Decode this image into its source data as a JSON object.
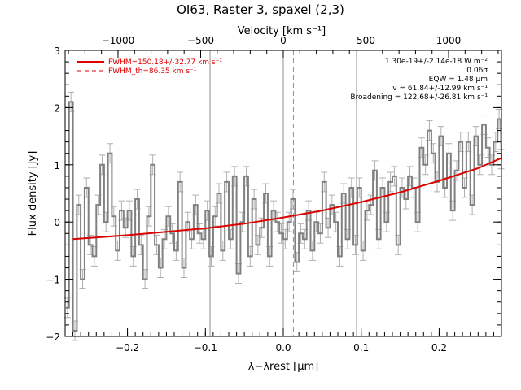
{
  "chart_data": {
    "type": "line",
    "title": "OI63, Raster 3, spaxel (2,3)",
    "xlabel": "λ−λrest [μm]",
    "ylabel": "Flux density [Jy]",
    "x2label": "Velocity [km s⁻¹]",
    "xlim": [
      -0.28,
      0.28
    ],
    "ylim": [
      -2,
      3
    ],
    "xticks": [
      -0.2,
      -0.1,
      0.0,
      0.1,
      0.2
    ],
    "yticks": [
      -2,
      -1,
      0,
      1,
      2,
      3
    ],
    "vticks": [
      -1000,
      -500,
      0,
      500,
      1000
    ],
    "vlim": [
      -1320,
      1320
    ],
    "annotations": [
      "1.30e-19+/-2.14e-18 W m⁻²",
      "0.06σ",
      "EQW = 1.48 μm",
      "v = 61.84+/-12.99 km s⁻¹",
      "Broadening = 122.68+/-26.81 km s⁻¹"
    ],
    "legend": [
      {
        "label": "FWHM=150.18+/-32.77 km s⁻¹",
        "style": "solid",
        "color": "#e00000"
      },
      {
        "label": "FWHM_th=86.35 km s⁻¹",
        "style": "dashed",
        "color": "#e00000"
      }
    ],
    "vlines": [
      {
        "x": -0.094,
        "style": "solid"
      },
      {
        "x": 0.0,
        "style": "solid"
      },
      {
        "x": 0.013,
        "style": "dashed"
      },
      {
        "x": 0.094,
        "style": "solid"
      }
    ],
    "spectrum": {
      "color": "#808080",
      "x_start": -0.28,
      "x_step": 0.005,
      "y": [
        -1.5,
        2.1,
        -1.9,
        0.3,
        -1.0,
        0.6,
        -0.4,
        -0.6,
        0.3,
        1.0,
        0.0,
        1.2,
        0.1,
        -0.5,
        0.2,
        -0.1,
        0.2,
        -0.6,
        0.4,
        -0.4,
        -1.0,
        0.1,
        1.0,
        -0.4,
        -0.8,
        -0.3,
        0.1,
        -0.2,
        -0.5,
        0.7,
        -0.8,
        0.0,
        -0.3,
        0.3,
        -0.2,
        -0.3,
        0.2,
        -0.6,
        0.1,
        0.5,
        -0.5,
        0.7,
        -0.3,
        0.8,
        -0.9,
        0.0,
        0.8,
        -0.6,
        0.4,
        -0.4,
        -0.1,
        0.5,
        -0.6,
        0.2,
        0.0,
        -0.2,
        -0.3,
        0.0,
        0.4,
        -0.7,
        -0.2,
        -0.3,
        0.2,
        -0.5,
        0.0,
        -0.2,
        0.7,
        -0.1,
        0.3,
        0.0,
        -0.6,
        0.5,
        -0.3,
        0.6,
        -0.4,
        0.6,
        -0.5,
        0.2,
        0.3,
        0.9,
        -0.3,
        0.6,
        0.0,
        0.7,
        0.8,
        -0.4,
        0.6,
        0.4,
        0.8,
        0.6,
        0.0,
        1.3,
        1.0,
        1.6,
        1.2,
        0.7,
        1.5,
        0.6,
        1.2,
        0.2,
        0.9,
        1.4,
        0.6,
        1.4,
        0.3,
        1.5,
        1.0,
        1.7,
        1.3,
        1.0,
        1.4,
        1.8,
        1.1
      ]
    },
    "fit": {
      "color": "#dd0000",
      "label": "FWHM=150.18+/-32.77 km s⁻¹",
      "x": [
        -0.27,
        -0.25,
        -0.2,
        -0.15,
        -0.1,
        -0.05,
        0.0,
        0.05,
        0.1,
        0.15,
        0.2,
        0.25,
        0.28
      ],
      "y": [
        -0.3,
        -0.28,
        -0.23,
        -0.17,
        -0.11,
        -0.03,
        0.08,
        0.2,
        0.35,
        0.52,
        0.72,
        0.94,
        1.12
      ]
    }
  }
}
